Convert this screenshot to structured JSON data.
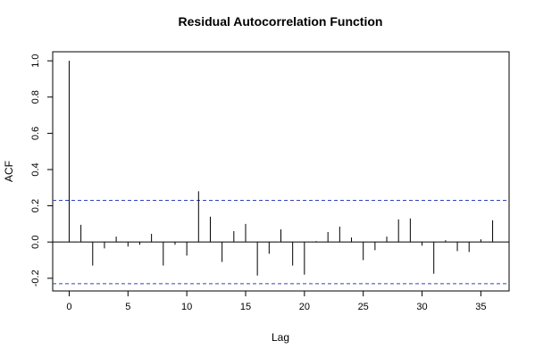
{
  "chart_data": {
    "type": "bar",
    "title": "Residual Autocorrelation Function",
    "xlabel": "Lag",
    "ylabel": "ACF",
    "xlim": [
      -1.4,
      37.4
    ],
    "ylim": [
      -0.27,
      1.05
    ],
    "x_ticks": [
      0,
      5,
      10,
      15,
      20,
      25,
      30,
      35
    ],
    "y_ticks": [
      -0.2,
      0.0,
      0.2,
      0.4,
      0.6,
      0.8,
      1.0
    ],
    "x_tick_labels": [
      "0",
      "5",
      "10",
      "15",
      "20",
      "25",
      "30",
      "35"
    ],
    "y_tick_labels": [
      "-0.2",
      "0.0",
      "0.2",
      "0.4",
      "0.6",
      "0.8",
      "1.0"
    ],
    "zero_line": 0,
    "confidence_bounds": [
      0.23,
      -0.23
    ],
    "confidence_color": "#3344bb",
    "bar_color": "#000000",
    "x": [
      0,
      1,
      2,
      3,
      4,
      5,
      6,
      7,
      8,
      9,
      10,
      11,
      12,
      13,
      14,
      15,
      16,
      17,
      18,
      19,
      20,
      21,
      22,
      23,
      24,
      25,
      26,
      27,
      28,
      29,
      30,
      31,
      32,
      33,
      34,
      35,
      36
    ],
    "values": [
      1.0,
      0.095,
      -0.13,
      -0.035,
      0.03,
      -0.025,
      -0.015,
      0.045,
      -0.13,
      -0.015,
      -0.075,
      0.28,
      0.14,
      -0.11,
      0.06,
      0.1,
      -0.185,
      -0.065,
      0.07,
      -0.13,
      -0.18,
      0.005,
      0.055,
      0.085,
      0.025,
      -0.1,
      -0.045,
      0.03,
      0.125,
      0.13,
      -0.02,
      -0.175,
      0.01,
      -0.05,
      -0.055,
      0.015,
      0.12
    ]
  }
}
